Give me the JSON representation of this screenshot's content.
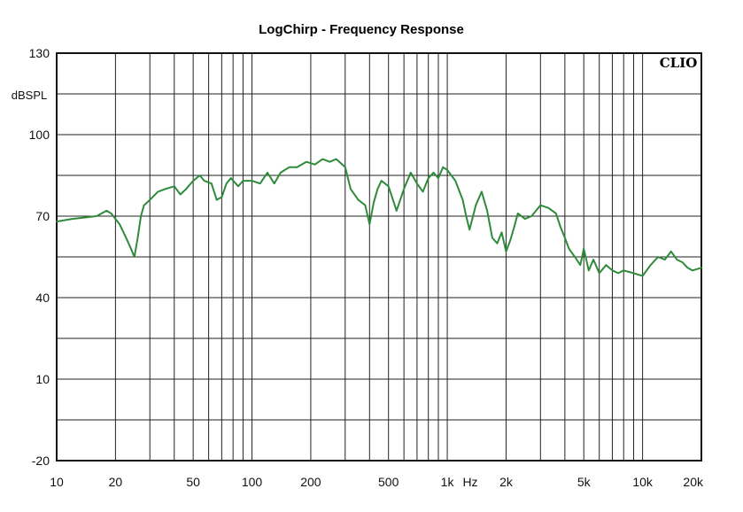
{
  "chart_data": {
    "type": "line",
    "title": "LogChirp - Frequency Response",
    "brand": "CLIO",
    "ylabel": "dBSPL",
    "xunit": "Hz",
    "x_scale": "log",
    "xlim": [
      10,
      20000
    ],
    "ylim": [
      -20,
      130
    ],
    "x_tick_values": [
      10,
      20,
      50,
      100,
      200,
      500,
      1000,
      2000,
      5000,
      10000,
      20000
    ],
    "x_tick_labels": [
      "10",
      "20",
      "50",
      "100",
      "200",
      "500",
      "1k",
      "2k",
      "5k",
      "10k",
      "20k"
    ],
    "y_tick_values": [
      130,
      100,
      70,
      40,
      10,
      -20
    ],
    "y_tick_labels": [
      "130",
      "100",
      "70",
      "40",
      "10",
      "-20"
    ],
    "grid": true,
    "line_color": "#2e8b3a",
    "series": [
      {
        "x": [
          10,
          12,
          14,
          16,
          18,
          19,
          20,
          21,
          22,
          23,
          24,
          25,
          26,
          27,
          28,
          29,
          30,
          33,
          36,
          40,
          43,
          46,
          50,
          54,
          57,
          62,
          66,
          70,
          74,
          78,
          85,
          90,
          100,
          110,
          120,
          130,
          140,
          155,
          170,
          190,
          210,
          230,
          250,
          270,
          300,
          320,
          350,
          380,
          400,
          420,
          440,
          460,
          500,
          550,
          600,
          650,
          700,
          750,
          800,
          850,
          900,
          950,
          1000,
          1100,
          1200,
          1250,
          1300,
          1400,
          1500,
          1600,
          1700,
          1800,
          1900,
          2000,
          2100,
          2200,
          2300,
          2500,
          2700,
          3000,
          3300,
          3600,
          3800,
          4000,
          4200,
          4500,
          4800,
          5000,
          5300,
          5600,
          6000,
          6500,
          7000,
          7500,
          8000,
          9000,
          10000,
          11000,
          12000,
          13000,
          14000,
          15000,
          16000,
          17000,
          18000,
          20000
        ],
        "y": [
          68,
          69,
          69.5,
          70,
          72,
          71,
          69,
          67,
          64,
          61,
          58,
          55,
          62,
          70,
          74,
          75,
          76,
          79,
          80,
          81,
          78,
          80,
          83,
          85,
          83,
          82,
          76,
          77,
          82,
          84,
          81,
          83,
          83,
          82,
          86,
          82,
          86,
          88,
          88,
          90,
          89,
          91,
          90,
          91,
          88,
          80,
          76,
          74,
          67,
          75,
          80,
          83,
          81,
          72,
          80,
          86,
          82,
          79,
          84,
          86,
          84,
          88,
          87,
          83,
          76,
          70,
          65,
          74,
          79,
          72,
          62,
          60,
          64,
          57,
          61,
          66,
          71,
          69,
          70,
          74,
          73,
          71,
          66,
          62,
          58,
          55,
          52,
          58,
          50,
          54,
          49,
          52,
          50,
          49,
          50,
          49,
          48,
          52,
          55,
          54,
          57,
          54,
          53,
          51,
          50,
          51
        ]
      }
    ]
  }
}
